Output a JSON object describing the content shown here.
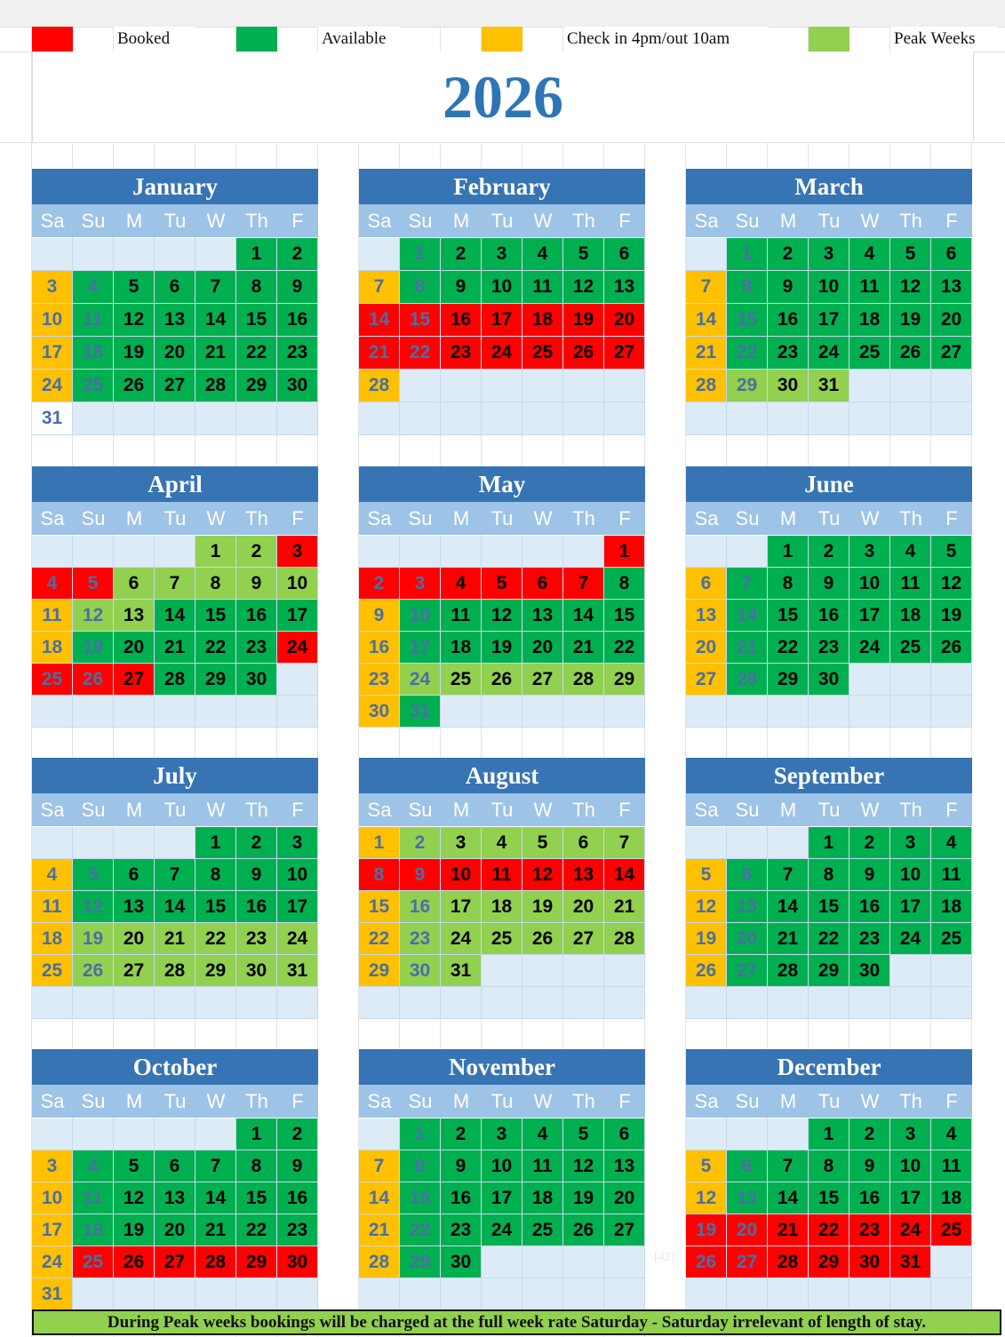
{
  "legend": [
    {
      "label": "Booked",
      "color": "#FF0000"
    },
    {
      "label": "Available",
      "color": "#00B050"
    },
    {
      "label": "Check in 4pm/out 10am",
      "color": "#FFC000"
    },
    {
      "label": "Peak Weeks",
      "color": "#92D050"
    }
  ],
  "year": "2026",
  "weekdays": [
    "Sa",
    "Su",
    "M",
    "Tu",
    "W",
    "Th",
    "F"
  ],
  "status_colors": {
    "B": "#FF0000",
    "A": "#00B050",
    "C": "#FFC000",
    "P": "#92D050",
    "W": "#FFFFFF",
    "E": "#DDEBF7"
  },
  "status_legend": {
    "B": "Booked",
    "A": "Available",
    "C": "Check in 4pm/out 10am",
    "P": "Peak Weeks"
  },
  "months": [
    {
      "name": "January",
      "start_col": 5,
      "days": 31,
      "status": "AACAAAAAACAAAAAACAAAAAACAAAAAAW"
    },
    {
      "name": "February",
      "start_col": 1,
      "days": 28,
      "status": "AAAAAACAAAAAABBBBBBBBBBBBBBC"
    },
    {
      "name": "March",
      "start_col": 1,
      "days": 31,
      "status": "AAAAAACAAAAAACAAAAAACAAAAAACPPP"
    },
    {
      "name": "April",
      "start_col": 4,
      "days": 30,
      "status": "PPBBBPPPPPCPPAAAACAAAAABBBBAAA"
    },
    {
      "name": "May",
      "start_col": 6,
      "days": 31,
      "status": "BBBBBBBACAAAAAACAAAAAACPPPPPPCA"
    },
    {
      "name": "June",
      "start_col": 2,
      "days": 30,
      "status": "AAAAACAAAAAACAAAAAACAAAAAACAAA"
    },
    {
      "name": "July",
      "start_col": 4,
      "days": 31,
      "status": "AAACAAAAAACAAAAAACPPPPPPCPPPPPP"
    },
    {
      "name": "August",
      "start_col": 0,
      "days": 31,
      "status": "CPPPPPPBBBBBBBCPPPPPPCPPPPPPCPP"
    },
    {
      "name": "September",
      "start_col": 3,
      "days": 30,
      "status": "AAAACAAAAAACAAAAAACAAAAAACAAAA"
    },
    {
      "name": "October",
      "start_col": 5,
      "days": 31,
      "status": "AACAAAAAACAAAAAACAAAAAACBBBBBBC"
    },
    {
      "name": "November",
      "start_col": 1,
      "days": 30,
      "status": "AAAAAACAAAAAACAAAAAACAAAAAACAA"
    },
    {
      "name": "December",
      "start_col": 3,
      "days": 31,
      "status": "AAAACAAAAAACAAAAAABBBBBBBBBBBBB"
    }
  ],
  "stray_text": "[42]",
  "footer": "During Peak weeks bookings will be charged at the  full week rate Saturday - Saturday irrelevant of length of stay."
}
